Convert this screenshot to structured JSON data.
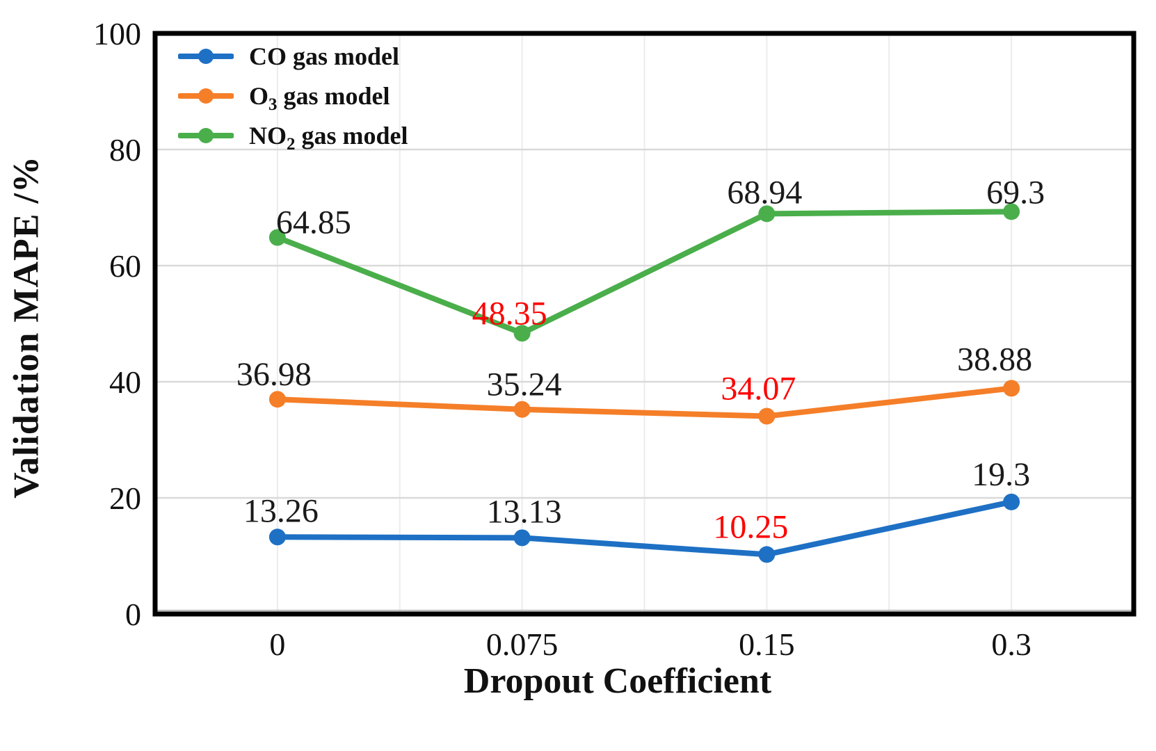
{
  "chart_data": {
    "type": "line",
    "title": "",
    "xlabel": "Dropout Coefficient",
    "ylabel": "Validation MAPE /%",
    "categories": [
      "0",
      "0.075",
      "0.15",
      "0.3"
    ],
    "x_tick_labels": [
      "0",
      "0.075",
      "0.15",
      "0.3"
    ],
    "y_tick_labels": [
      "0",
      "20",
      "40",
      "60",
      "80",
      "100"
    ],
    "y_ticks": [
      0,
      20,
      40,
      60,
      80,
      100
    ],
    "ylim": [
      0,
      100
    ],
    "grid": {
      "horizontal": true,
      "vertical": true
    },
    "legend_position": "top-left-inside",
    "min_label_color": "#fe0000",
    "normal_label_color": "#1a1a1a",
    "series": [
      {
        "name": "CO gas model",
        "legend": {
          "main": "CO",
          "sub": "",
          "rest": " gas model"
        },
        "color": "#1e70c4",
        "values": [
          13.26,
          13.13,
          10.25,
          19.3
        ],
        "point_labels": [
          {
            "text": "13.26",
            "color": "#1a1a1a",
            "dx": 5,
            "dy": -22
          },
          {
            "text": "13.13",
            "color": "#1a1a1a",
            "dx": 3,
            "dy": -22
          },
          {
            "text": "10.25",
            "color": "#fe0000",
            "dx": -23,
            "dy": -24
          },
          {
            "text": "19.3",
            "color": "#1a1a1a",
            "dx": -15,
            "dy": -24
          }
        ]
      },
      {
        "name": "O3 gas model",
        "legend": {
          "main": "O",
          "sub": "3",
          "rest": " gas model"
        },
        "color": "#f57e28",
        "values": [
          36.98,
          35.24,
          34.07,
          38.88
        ],
        "point_labels": [
          {
            "text": "36.98",
            "color": "#1a1a1a",
            "dx": -5,
            "dy": -20
          },
          {
            "text": "35.24",
            "color": "#1a1a1a",
            "dx": 3,
            "dy": -20
          },
          {
            "text": "34.07",
            "color": "#fe0000",
            "dx": -12,
            "dy": -24
          },
          {
            "text": "38.88",
            "color": "#1a1a1a",
            "dx": -24,
            "dy": -26
          }
        ]
      },
      {
        "name": "NO2 gas model",
        "legend": {
          "main": "NO",
          "sub": "2",
          "rest": " gas model"
        },
        "color": "#4aae4b",
        "values": [
          64.85,
          48.35,
          68.94,
          69.3
        ],
        "point_labels": [
          {
            "text": "64.85",
            "color": "#1a1a1a",
            "dx": 52,
            "dy": -6
          },
          {
            "text": "48.35",
            "color": "#fe0000",
            "dx": -18,
            "dy": -13
          },
          {
            "text": "68.94",
            "color": "#1a1a1a",
            "dx": -3,
            "dy": -15
          },
          {
            "text": "69.3",
            "color": "#1a1a1a",
            "dx": 6,
            "dy": -12
          }
        ]
      }
    ]
  }
}
